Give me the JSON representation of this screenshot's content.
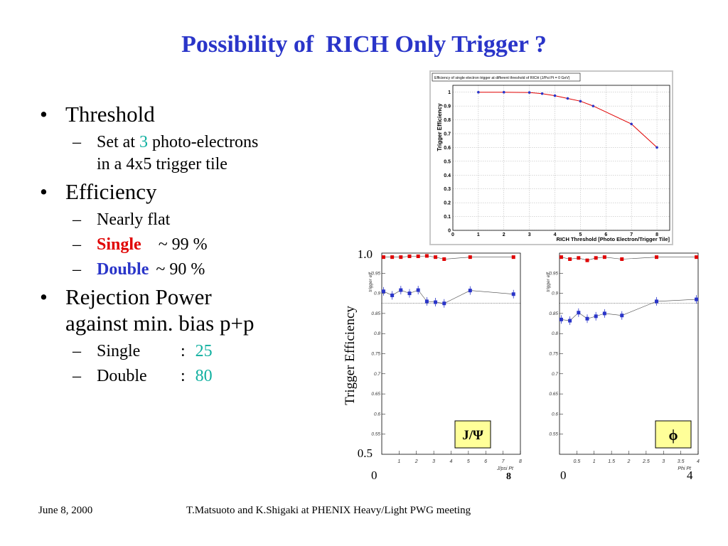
{
  "slide": {
    "title": "Possibility of  RICH Only Trigger ?",
    "footer_date": "June 8, 2000",
    "footer_text": "T.Matsuoto and K.Shigaki at PHENIX Heavy/Light PWG meeting"
  },
  "bullets": {
    "threshold": "Threshold",
    "threshold_sub_a": "Set at ",
    "threshold_sub_value": "3",
    "threshold_sub_b": " photo-electrons",
    "threshold_sub_c": "in a 4x5 trigger tile",
    "efficiency": "Efficiency",
    "eff_flat": "Nearly flat",
    "eff_single_label": "Single",
    "eff_single_value": "~ 99 %",
    "eff_double_label": "Double",
    "eff_double_value": "~ 90 %",
    "rejection_line1": "Rejection Power",
    "rejection_line2": "against min. bias p+p",
    "rej_single_label": "Single",
    "rej_single_value": "25",
    "rej_double_label": "Double",
    "rej_double_value": "80",
    "colon": ":"
  },
  "colors": {
    "title_blue": "#2a35c9",
    "single_red": "#e00000",
    "double_blue": "#2a35c9",
    "value_green": "#10b0a0",
    "label_box_yellow": "#ffff99"
  },
  "chart_data": [
    {
      "type": "line",
      "title": "Efficiency of single electron trigger at different threshold of RICH (J/Psi Pt = 0  GeV)",
      "xlabel": "RICH Threshold [Photo Electron/Trigger Tile]",
      "ylabel": "Trigger Efficiency",
      "xlim": [
        0,
        8.5
      ],
      "ylim": [
        0,
        1.05
      ],
      "xticks": [
        "0",
        "1",
        "2",
        "3",
        "4",
        "5",
        "6",
        "7",
        "8"
      ],
      "yticks": [
        "0",
        "0.1",
        "0.2",
        "0.3",
        "0.4",
        "0.5",
        "0.6",
        "0.7",
        "0.8",
        "0.9",
        "1"
      ],
      "grid": true,
      "x": [
        1,
        2,
        3,
        3.5,
        4,
        4.5,
        5,
        5.5,
        7,
        8
      ],
      "y": [
        1.0,
        1.0,
        0.998,
        0.99,
        0.975,
        0.955,
        0.935,
        0.9,
        0.77,
        0.6
      ]
    },
    {
      "type": "scatter",
      "panel_label": "J/Ψ",
      "xlabel": "J/psi Pt",
      "ylabel": "trigger eff.",
      "shared_ylabel": "Trigger Efficiency",
      "xlim": [
        0,
        8
      ],
      "ylim": [
        0.5,
        1.0
      ],
      "x_end_labels": [
        "0",
        "8"
      ],
      "y_end_labels": [
        "0.5",
        "1.0"
      ],
      "xticks": [
        "1",
        "2",
        "3",
        "4",
        "5",
        "6",
        "7",
        "8"
      ],
      "yticks": [
        "0.55",
        "0.6",
        "0.65",
        "0.7",
        "0.75",
        "0.8",
        "0.85",
        "0.9",
        "0.95"
      ],
      "reference_line": 0.875,
      "series": [
        {
          "color": "#e00000",
          "x": [
            0.1,
            0.6,
            1.1,
            1.6,
            2.1,
            2.6,
            3.1,
            3.6,
            5.1,
            7.6
          ],
          "y": [
            0.99,
            0.99,
            0.99,
            0.992,
            0.992,
            0.993,
            0.99,
            0.985,
            0.99,
            0.99
          ]
        },
        {
          "color": "#2a35c9",
          "x": [
            0.1,
            0.6,
            1.1,
            1.6,
            2.1,
            2.6,
            3.1,
            3.6,
            5.1,
            7.6
          ],
          "y": [
            0.905,
            0.895,
            0.908,
            0.9,
            0.908,
            0.88,
            0.878,
            0.875,
            0.907,
            0.898
          ]
        }
      ]
    },
    {
      "type": "scatter",
      "panel_label": "ϕ",
      "xlabel": "Phi Pt",
      "ylabel": "trigger eff.",
      "xlim": [
        0,
        4
      ],
      "ylim": [
        0.5,
        1.0
      ],
      "x_end_labels": [
        "0",
        "4"
      ],
      "xticks": [
        "0.5",
        "1",
        "1.5",
        "2",
        "2.5",
        "3",
        "3.5",
        "4"
      ],
      "yticks": [
        "0.55",
        "0.6",
        "0.65",
        "0.7",
        "0.75",
        "0.8",
        "0.85",
        "0.9",
        "0.95"
      ],
      "reference_line": 0.875,
      "series": [
        {
          "color": "#e00000",
          "x": [
            0.05,
            0.3,
            0.55,
            0.8,
            1.05,
            1.3,
            1.8,
            2.8,
            3.95
          ],
          "y": [
            0.99,
            0.985,
            0.988,
            0.982,
            0.988,
            0.99,
            0.985,
            0.99,
            0.99
          ]
        },
        {
          "color": "#2a35c9",
          "x": [
            0.05,
            0.3,
            0.55,
            0.8,
            1.05,
            1.3,
            1.8,
            2.8,
            3.95
          ],
          "y": [
            0.835,
            0.832,
            0.852,
            0.837,
            0.843,
            0.85,
            0.845,
            0.88,
            0.885
          ]
        }
      ]
    }
  ]
}
